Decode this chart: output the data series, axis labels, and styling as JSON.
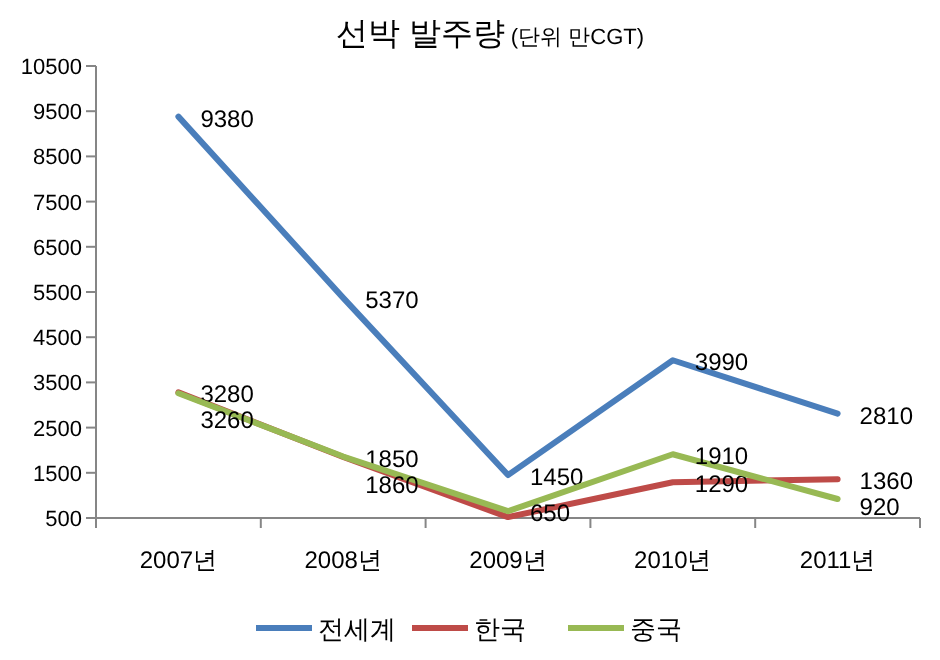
{
  "chart_data": {
    "type": "line",
    "title": "선박 발주량",
    "subtitle": "(단위 만CGT)",
    "categories": [
      "2007년",
      "2008년",
      "2009년",
      "2010년",
      "2011년"
    ],
    "ylim": [
      500,
      10500
    ],
    "yticks": [
      500,
      1500,
      2500,
      3500,
      4500,
      5500,
      6500,
      7500,
      8500,
      9500,
      10500
    ],
    "grid": false,
    "legend": "bottom",
    "marker": "none",
    "line_style": "solid",
    "series": [
      {
        "name": "전세계",
        "color": "#4a7ebb",
        "values": [
          9380,
          5370,
          1450,
          3990,
          2810
        ],
        "value_labels": [
          "9380",
          "5370",
          "1450",
          "3990",
          "2810"
        ]
      },
      {
        "name": "한국",
        "color": "#be4b48",
        "values": [
          3280,
          1850,
          520,
          1290,
          1360
        ],
        "value_labels": [
          "3280",
          "1850",
          null,
          "1290",
          "1360"
        ]
      },
      {
        "name": "중국",
        "color": "#98b954",
        "values": [
          3260,
          1860,
          650,
          1910,
          920
        ],
        "value_labels": [
          "3260",
          "1860",
          "650",
          "1910",
          "920"
        ]
      }
    ]
  }
}
